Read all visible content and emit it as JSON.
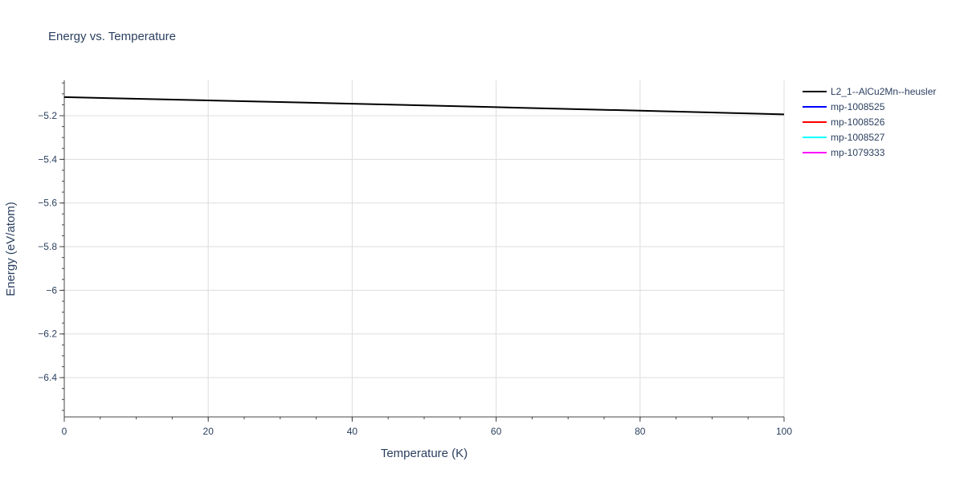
{
  "chart_data": {
    "type": "line",
    "title": "Energy vs. Temperature",
    "xlabel": "Temperature (K)",
    "ylabel": "Energy (eV/atom)",
    "xlim": [
      0,
      100
    ],
    "ylim": [
      -6.58,
      -5.038
    ],
    "x_ticks": [
      0,
      20,
      40,
      60,
      80,
      100
    ],
    "x_tick_labels": [
      "0",
      "20",
      "40",
      "60",
      "80",
      "100"
    ],
    "y_ticks": [
      -5.2,
      -5.4,
      -5.6,
      -5.8,
      -6,
      -6.2,
      -6.4
    ],
    "y_tick_labels": [
      "−5.2",
      "−5.4",
      "−5.6",
      "−5.8",
      "−6",
      "−6.2",
      "−6.4"
    ],
    "grid": true,
    "legend_placement": "top-right outside",
    "series": [
      {
        "name": "L2_1--AlCu2Mn--heusler",
        "color": "#000000",
        "x": [
          0,
          20,
          40,
          60,
          80,
          100
        ],
        "y": [
          -5.115,
          -5.13,
          -5.145,
          -5.161,
          -5.177,
          -5.194
        ]
      },
      {
        "name": "mp-1008525",
        "color": "#0000ff",
        "x": [],
        "y": []
      },
      {
        "name": "mp-1008526",
        "color": "#ff0000",
        "x": [],
        "y": []
      },
      {
        "name": "mp-1008527",
        "color": "#00ffff",
        "x": [],
        "y": []
      },
      {
        "name": "mp-1079333",
        "color": "#ff00ff",
        "x": [],
        "y": []
      }
    ]
  }
}
